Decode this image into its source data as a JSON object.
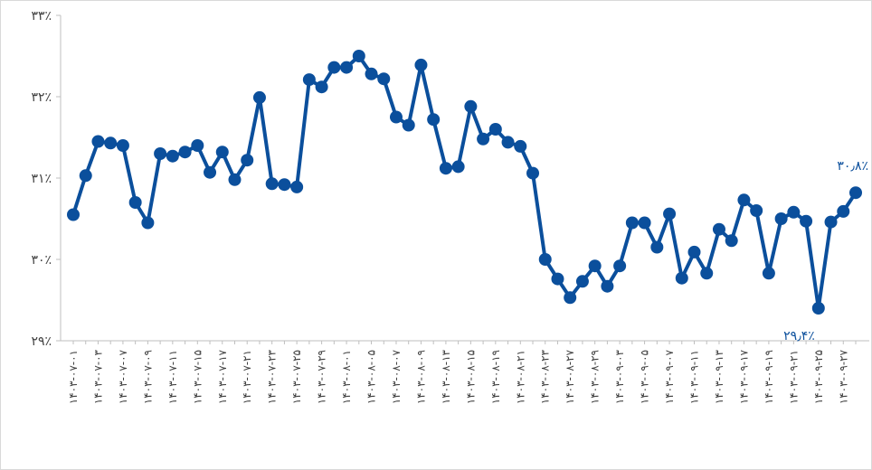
{
  "chart_data": {
    "type": "line",
    "ylim": [
      29,
      33
    ],
    "y_ticks": [
      "۲۹٪",
      "۳۰٪",
      "۳۱٪",
      "۳۲٪",
      "۳۳٪"
    ],
    "grid": false,
    "line_color": "#0b4f9c",
    "x": [
      "۱۴۰۳-۰۷-۰۱",
      "",
      "۱۴۰۳-۰۷-۰۳",
      "",
      "۱۴۰۳-۰۷-۰۷",
      "",
      "۱۴۰۳-۰۷-۰۹",
      "",
      "۱۴۰۳-۰۷-۱۱",
      "",
      "۱۴۰۳-۰۷-۱۵",
      "",
      "۱۴۰۳-۰۷-۱۷",
      "",
      "۱۴۰۳-۰۷-۲۱",
      "",
      "۱۴۰۳-۰۷-۲۳",
      "",
      "۱۴۰۳-۰۷-۲۵",
      "",
      "۱۴۰۳-۰۷-۲۹",
      "",
      "۱۴۰۳-۰۸-۰۱",
      "",
      "۱۴۰۳-۰۸-۰۵",
      "",
      "۱۴۰۳-۰۸-۰۷",
      "",
      "۱۴۰۳-۰۸-۰۹",
      "",
      "۱۴۰۳-۰۸-۱۳",
      "",
      "۱۴۰۳-۰۸-۱۵",
      "",
      "۱۴۰۳-۰۸-۱۹",
      "",
      "۱۴۰۳-۰۸-۲۱",
      "",
      "۱۴۰۳-۰۸-۲۳",
      "",
      "۱۴۰۳-۰۸-۲۷",
      "",
      "۱۴۰۳-۰۸-۲۹",
      "",
      "۱۴۰۳-۰۹-۰۳",
      "",
      "۱۴۰۳-۰۹-۰۵",
      "",
      "۱۴۰۳-۰۹-۰۷",
      "",
      "۱۴۰۳-۰۹-۱۱",
      "",
      "۱۴۰۳-۰۹-۱۳",
      "",
      "۱۴۰۳-۰۹-۱۷",
      "",
      "۱۴۰۳-۰۹-۱۹",
      "",
      "۱۴۰۳-۰۹-۲۱",
      "",
      "۱۴۰۳-۰۹-۲۵",
      "",
      "۱۴۰۳-۰۹-۲۷",
      ""
    ],
    "series": [
      {
        "values": [
          30.55,
          31.03,
          31.45,
          31.43,
          31.4,
          30.7,
          30.45,
          31.3,
          31.27,
          31.32,
          31.4,
          31.07,
          31.32,
          30.98,
          31.22,
          31.99,
          30.93,
          30.92,
          30.89,
          32.21,
          32.12,
          32.36,
          32.36,
          32.5,
          32.28,
          32.22,
          31.75,
          31.65,
          32.39,
          31.72,
          31.12,
          31.14,
          31.88,
          31.48,
          31.6,
          31.44,
          31.39,
          31.06,
          30.0,
          29.76,
          29.53,
          29.73,
          29.92,
          29.67,
          29.92,
          30.45,
          30.45,
          30.15,
          30.56,
          29.77,
          30.09,
          29.83,
          30.37,
          30.23,
          30.73,
          30.6,
          29.83,
          30.5,
          30.58,
          30.47,
          29.4,
          30.46,
          30.59,
          30.82
        ]
      }
    ],
    "annotations": [
      {
        "text": "۳۰٫۸٪",
        "point_index": 63
      },
      {
        "text": "۲۹٫۴٪",
        "point_index": 60
      }
    ]
  }
}
